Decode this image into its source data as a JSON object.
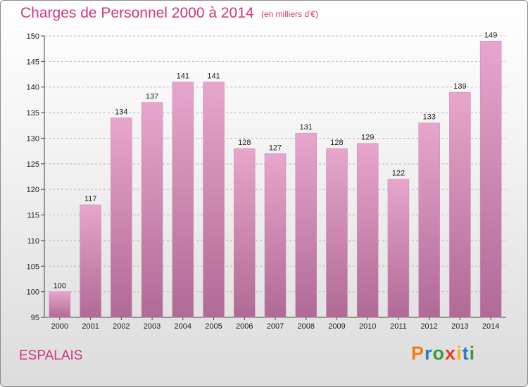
{
  "header": {
    "title": "Charges de Personnel 2000 à 2014",
    "unit_note": "(en milliers d'€)"
  },
  "footer": {
    "commune": "ESPALAIS",
    "logo_text": "Proxiti"
  },
  "colors": {
    "title": "#d2367a",
    "bar_top": "#e7a6cb",
    "bar_bottom": "#b06a96",
    "logo_letters": [
      "#f07f1a",
      "#2f77c8",
      "#3c9c3c",
      "#e63b2e",
      "#f0b21a",
      "#2f77c8",
      "#3c9c3c"
    ]
  },
  "chart_data": {
    "type": "bar",
    "categories": [
      "2000",
      "2001",
      "2002",
      "2003",
      "2004",
      "2005",
      "2006",
      "2007",
      "2008",
      "2009",
      "2010",
      "2011",
      "2012",
      "2013",
      "2014"
    ],
    "values": [
      100,
      117,
      134,
      137,
      141,
      141,
      128,
      127,
      131,
      128,
      129,
      122,
      133,
      139,
      149
    ],
    "title": "Charges de Personnel 2000 à 2014",
    "subtitle": "(en milliers d'€)",
    "ylim": [
      95,
      150
    ],
    "yticks": [
      95,
      100,
      105,
      110,
      115,
      120,
      125,
      130,
      135,
      140,
      145,
      150
    ],
    "grid": true,
    "data_labels": true
  }
}
